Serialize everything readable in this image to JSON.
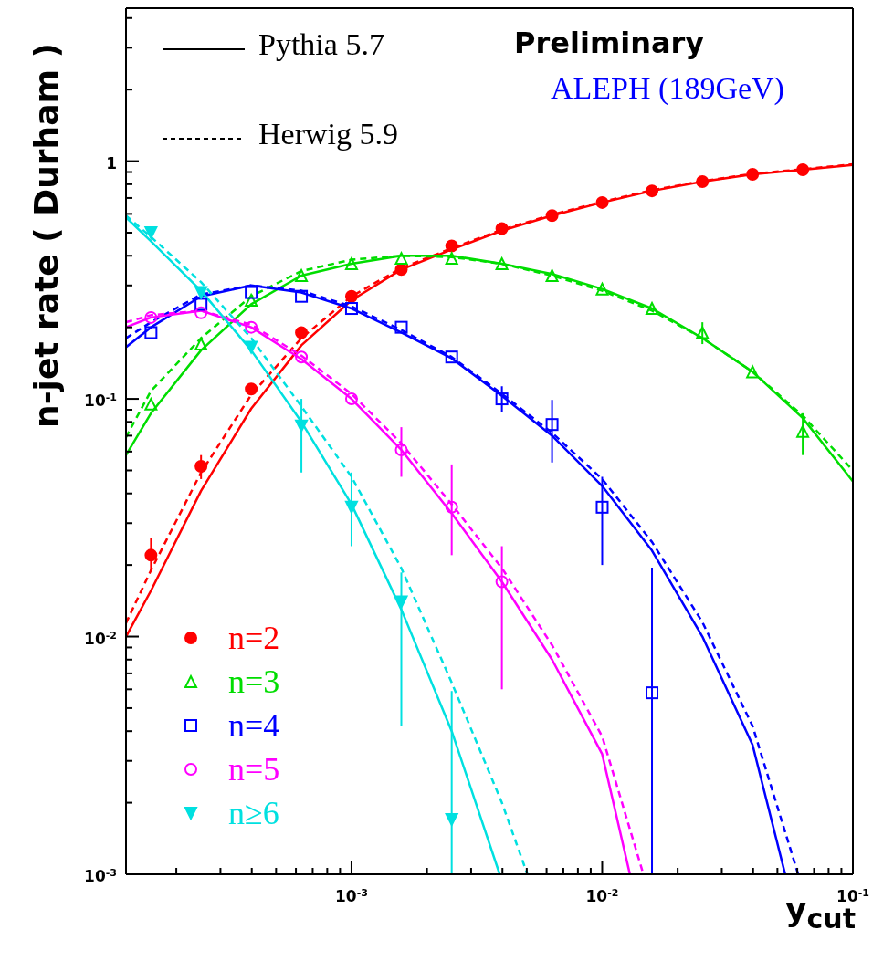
{
  "chart_data": {
    "type": "scatter",
    "xlabel": "y$_{cut}$",
    "ylabel": "n-jet rate ( Durham )",
    "annotations": [
      "Pythia 5.7",
      "Herwig 5.9",
      "Preliminary",
      "ALEPH (189GeV)"
    ],
    "log": "xy",
    "legend": "bottom left",
    "xlim": [
      0.000126,
      0.1
    ],
    "xticks": [
      {
        "value": 0.0002,
        "label": null
      },
      {
        "value": 0.0003,
        "label": null
      },
      {
        "value": 0.0004,
        "label": null
      },
      {
        "value": 0.0005,
        "label": null
      },
      {
        "value": 0.0006,
        "label": null
      },
      {
        "value": 0.0007,
        "label": null
      },
      {
        "value": 0.0008,
        "label": null
      },
      {
        "value": 0.0009,
        "label": null
      },
      {
        "value": 0.001,
        "label": "10$^{-3}$"
      },
      {
        "value": 0.002,
        "label": null
      },
      {
        "value": 0.003,
        "label": null
      },
      {
        "value": 0.004,
        "label": null
      },
      {
        "value": 0.005,
        "label": null
      },
      {
        "value": 0.006,
        "label": null
      },
      {
        "value": 0.007,
        "label": null
      },
      {
        "value": 0.008,
        "label": null
      },
      {
        "value": 0.009,
        "label": null
      },
      {
        "value": 0.01,
        "label": "10$^{-2}$"
      },
      {
        "value": 0.02,
        "label": null
      },
      {
        "value": 0.03,
        "label": null
      },
      {
        "value": 0.04,
        "label": null
      },
      {
        "value": 0.05,
        "label": null
      },
      {
        "value": 0.06,
        "label": null
      },
      {
        "value": 0.07,
        "label": null
      },
      {
        "value": 0.08,
        "label": null
      },
      {
        "value": 0.09,
        "label": null
      },
      {
        "value": 0.1,
        "label": "10$^{-1}$"
      }
    ],
    "ylim": [
      0.001,
      4.4
    ],
    "yticks": [
      {
        "value": 0.001,
        "label": "10$^{-3}$"
      },
      {
        "value": 0.002,
        "label": null
      },
      {
        "value": 0.003,
        "label": null
      },
      {
        "value": 0.004,
        "label": null
      },
      {
        "value": 0.005,
        "label": null
      },
      {
        "value": 0.006,
        "label": null
      },
      {
        "value": 0.007,
        "label": null
      },
      {
        "value": 0.008,
        "label": null
      },
      {
        "value": 0.009,
        "label": null
      },
      {
        "value": 0.01,
        "label": "10$^{-2}$"
      },
      {
        "value": 0.02,
        "label": null
      },
      {
        "value": 0.03,
        "label": null
      },
      {
        "value": 0.04,
        "label": null
      },
      {
        "value": 0.05,
        "label": null
      },
      {
        "value": 0.06,
        "label": null
      },
      {
        "value": 0.07,
        "label": null
      },
      {
        "value": 0.08,
        "label": null
      },
      {
        "value": 0.09,
        "label": null
      },
      {
        "value": 0.1,
        "label": "10$^{-1}$"
      },
      {
        "value": 0.2,
        "label": null
      },
      {
        "value": 0.3,
        "label": null
      },
      {
        "value": 0.4,
        "label": null
      },
      {
        "value": 0.5,
        "label": null
      },
      {
        "value": 0.6,
        "label": null
      },
      {
        "value": 0.7,
        "label": null
      },
      {
        "value": 0.8,
        "label": null
      },
      {
        "value": 0.9,
        "label": null
      },
      1,
      {
        "value": 2,
        "label": null
      },
      {
        "value": 3,
        "label": null
      },
      {
        "value": 4,
        "label": null
      }
    ],
    "series": [
      {
        "type": "line",
        "line_style": "solid",
        "color": "#ff0000",
        "x": [
          0.000126,
          0.0001585,
          0.000251,
          0.000398,
          0.000631,
          0.001,
          0.00158,
          0.00251,
          0.00398,
          0.00631,
          0.01,
          0.0158,
          0.0251,
          0.0398,
          0.0631,
          0.1
        ],
        "values": [
          0.01,
          0.0156,
          0.041,
          0.091,
          0.168,
          0.26,
          0.35,
          0.425,
          0.51,
          0.59,
          0.67,
          0.75,
          0.82,
          0.88,
          0.92,
          0.965
        ]
      },
      {
        "type": "line",
        "line_style": "dashed",
        "color": "#ff0000",
        "x": [
          0.000126,
          0.0001585,
          0.000251,
          0.000398,
          0.000631,
          0.001,
          0.00158,
          0.00251,
          0.00398,
          0.00631,
          0.01,
          0.0158,
          0.0251,
          0.0398,
          0.0631,
          0.1
        ],
        "values": [
          0.0114,
          0.019,
          0.049,
          0.104,
          0.18,
          0.27,
          0.355,
          0.43,
          0.515,
          0.595,
          0.675,
          0.755,
          0.825,
          0.885,
          0.925,
          0.97
        ]
      },
      {
        "type": "line",
        "line_style": "solid",
        "color": "#00dd00",
        "x": [
          0.000126,
          0.0001585,
          0.000251,
          0.000398,
          0.000631,
          0.001,
          0.00158,
          0.00251,
          0.00398,
          0.00631,
          0.01,
          0.0158,
          0.0251,
          0.0398,
          0.0631,
          0.1
        ],
        "values": [
          0.058,
          0.087,
          0.16,
          0.25,
          0.33,
          0.37,
          0.4,
          0.4,
          0.37,
          0.335,
          0.29,
          0.24,
          0.18,
          0.13,
          0.083,
          0.045
        ]
      },
      {
        "type": "line",
        "line_style": "dashed",
        "color": "#00dd00",
        "x": [
          0.000126,
          0.0001585,
          0.000251,
          0.000398,
          0.000631,
          0.001,
          0.00158,
          0.00251,
          0.00398,
          0.00631,
          0.01,
          0.0158,
          0.0251,
          0.0398,
          0.0631,
          0.1
        ],
        "values": [
          0.069,
          0.108,
          0.18,
          0.27,
          0.345,
          0.385,
          0.4,
          0.395,
          0.37,
          0.33,
          0.285,
          0.235,
          0.18,
          0.13,
          0.085,
          0.05
        ]
      },
      {
        "type": "line",
        "line_style": "solid",
        "color": "#0000ff",
        "x": [
          0.000126,
          0.0001585,
          0.000251,
          0.000398,
          0.000631,
          0.001,
          0.00158,
          0.00251,
          0.00398,
          0.00631,
          0.01,
          0.0158,
          0.0251,
          0.0398,
          0.0537
        ],
        "values": [
          0.165,
          0.2,
          0.27,
          0.3,
          0.28,
          0.24,
          0.19,
          0.148,
          0.103,
          0.07,
          0.043,
          0.023,
          0.01,
          0.0035,
          0.001
        ]
      },
      {
        "type": "line",
        "line_style": "dashed",
        "color": "#0000ff",
        "x": [
          0.000126,
          0.0001585,
          0.000251,
          0.000398,
          0.000631,
          0.001,
          0.00158,
          0.00251,
          0.00398,
          0.00631,
          0.01,
          0.0158,
          0.0251,
          0.0398,
          0.0605
        ],
        "values": [
          0.18,
          0.21,
          0.275,
          0.3,
          0.285,
          0.245,
          0.195,
          0.15,
          0.105,
          0.072,
          0.046,
          0.025,
          0.0115,
          0.0042,
          0.001
        ]
      },
      {
        "type": "line",
        "line_style": "solid",
        "color": "#ff00ff",
        "x": [
          0.000126,
          0.0001585,
          0.000251,
          0.000398,
          0.000631,
          0.001,
          0.00158,
          0.00251,
          0.00398,
          0.00631,
          0.01,
          0.0129
        ],
        "values": [
          0.2,
          0.22,
          0.235,
          0.2,
          0.147,
          0.1,
          0.061,
          0.033,
          0.017,
          0.008,
          0.0032,
          0.001
        ]
      },
      {
        "type": "line",
        "line_style": "dashed",
        "color": "#ff00ff",
        "x": [
          0.000126,
          0.0001585,
          0.000251,
          0.000398,
          0.000631,
          0.001,
          0.00158,
          0.00251,
          0.00398,
          0.00631,
          0.01,
          0.0146
        ],
        "values": [
          0.21,
          0.225,
          0.235,
          0.205,
          0.152,
          0.105,
          0.065,
          0.036,
          0.0194,
          0.0092,
          0.0038,
          0.001
        ]
      },
      {
        "type": "line",
        "line_style": "solid",
        "color": "#00e0e0",
        "x": [
          0.000126,
          0.0001585,
          0.000251,
          0.000398,
          0.000631,
          0.001,
          0.00158,
          0.00251,
          0.0039
        ],
        "values": [
          0.58,
          0.46,
          0.285,
          0.16,
          0.08,
          0.036,
          0.013,
          0.004,
          0.001
        ]
      },
      {
        "type": "line",
        "line_style": "dashed",
        "color": "#00e0e0",
        "x": [
          0.000126,
          0.0001585,
          0.000251,
          0.000398,
          0.000631,
          0.001,
          0.00158,
          0.00251,
          0.00398,
          0.00503
        ],
        "values": [
          0.59,
          0.48,
          0.31,
          0.18,
          0.093,
          0.047,
          0.0194,
          0.0064,
          0.002,
          0.001
        ]
      },
      {
        "type": "scatter",
        "name": "n=2",
        "marker": "circle",
        "color": "#ff0000",
        "x": [
          0.0001585,
          0.000251,
          0.000398,
          0.000631,
          0.001,
          0.00158,
          0.00251,
          0.00398,
          0.00631,
          0.01,
          0.0158,
          0.0251,
          0.0398,
          0.0631
        ],
        "values": [
          0.022,
          0.052,
          0.11,
          0.19,
          0.27,
          0.35,
          0.44,
          0.52,
          0.59,
          0.67,
          0.75,
          0.82,
          0.88,
          0.92
        ],
        "errors": [
          [
            0.019,
            0.026
          ],
          [
            0.046,
            0.058
          ],
          null,
          null,
          null,
          null,
          null,
          null,
          null,
          null,
          null,
          null,
          null,
          null
        ]
      },
      {
        "type": "scatter",
        "name": "n=3",
        "marker": "triangle",
        "color": "#00dd00",
        "x": [
          0.0001585,
          0.000251,
          0.000398,
          0.000631,
          0.001,
          0.00158,
          0.00251,
          0.00398,
          0.00631,
          0.01,
          0.0158,
          0.0251,
          0.0398,
          0.0631
        ],
        "values": [
          0.095,
          0.17,
          0.26,
          0.33,
          0.37,
          0.39,
          0.39,
          0.37,
          0.33,
          0.29,
          0.24,
          0.19,
          0.13,
          0.073
        ],
        "errors": [
          null,
          null,
          null,
          null,
          null,
          null,
          null,
          null,
          null,
          null,
          null,
          [
            0.17,
            0.21
          ],
          null,
          [
            0.058,
            0.087
          ]
        ]
      },
      {
        "type": "scatter",
        "name": "n=4",
        "marker": "square",
        "color": "#0000ff",
        "x": [
          0.0001585,
          0.000251,
          0.000398,
          0.000631,
          0.001,
          0.00158,
          0.00251,
          0.00398,
          0.00631,
          0.01,
          0.0158
        ],
        "values": [
          0.19,
          0.25,
          0.28,
          0.27,
          0.24,
          0.2,
          0.15,
          0.1,
          0.078,
          0.035,
          0.0058
        ],
        "errors": [
          null,
          null,
          null,
          null,
          null,
          null,
          null,
          [
            0.088,
            0.113
          ],
          [
            0.054,
            0.099
          ],
          [
            0.02,
            0.047
          ],
          [
            0.001,
            0.0195
          ]
        ]
      },
      {
        "type": "scatter",
        "name": "n=5",
        "marker": "circle",
        "color": "#ff00ff",
        "x": [
          0.0001585,
          0.000251,
          0.000398,
          0.000631,
          0.001,
          0.00158,
          0.00251,
          0.00398
        ],
        "values": [
          0.22,
          0.23,
          0.2,
          0.15,
          0.1,
          0.061,
          0.035,
          0.017
        ],
        "errors": [
          null,
          null,
          null,
          null,
          null,
          [
            0.047,
            0.076
          ],
          [
            0.022,
            0.053
          ],
          [
            0.006,
            0.024
          ]
        ]
      },
      {
        "type": "scatter",
        "name": "n≥6",
        "marker": "triangle",
        "color": "#00e0e0",
        "x": [
          0.0001585,
          0.000251,
          0.000398,
          0.000631,
          0.001,
          0.00158,
          0.00251
        ],
        "values": [
          0.5,
          0.28,
          0.165,
          0.077,
          0.035,
          0.014,
          0.0017
        ],
        "errors": [
          null,
          null,
          null,
          [
            0.049,
            0.1
          ],
          [
            0.024,
            0.049
          ],
          [
            0.0042,
            0.0186
          ],
          [
            0.001,
            0.0059
          ]
        ]
      }
    ]
  }
}
